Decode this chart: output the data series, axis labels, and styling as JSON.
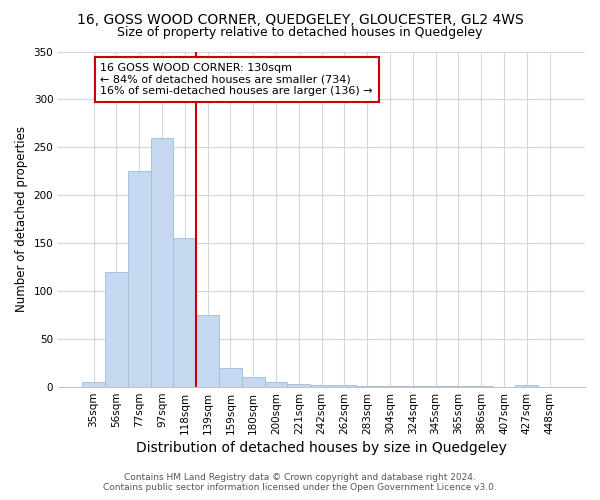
{
  "title1": "16, GOSS WOOD CORNER, QUEDGELEY, GLOUCESTER, GL2 4WS",
  "title2": "Size of property relative to detached houses in Quedgeley",
  "xlabel": "Distribution of detached houses by size in Quedgeley",
  "ylabel": "Number of detached properties",
  "categories": [
    "35sqm",
    "56sqm",
    "77sqm",
    "97sqm",
    "118sqm",
    "139sqm",
    "159sqm",
    "180sqm",
    "200sqm",
    "221sqm",
    "242sqm",
    "262sqm",
    "283sqm",
    "304sqm",
    "324sqm",
    "345sqm",
    "365sqm",
    "386sqm",
    "407sqm",
    "427sqm",
    "448sqm"
  ],
  "bar_heights": [
    5,
    120,
    225,
    260,
    155,
    75,
    20,
    10,
    5,
    3,
    2,
    2,
    1,
    1,
    1,
    1,
    1,
    1,
    0,
    2,
    0
  ],
  "bar_color": "#c5d8f0",
  "bar_edge_color": "#a0bcd8",
  "bar_width": 1.0,
  "vline_x": 5,
  "vline_color": "#cc0000",
  "annotation_line1": "16 GOSS WOOD CORNER: 130sqm",
  "annotation_line2": "← 84% of detached houses are smaller (734)",
  "annotation_line3": "16% of semi-detached houses are larger (136) →",
  "annotation_box_color": "#ffffff",
  "annotation_box_edge": "#cc0000",
  "ylim": [
    0,
    350
  ],
  "yticks": [
    0,
    50,
    100,
    150,
    200,
    250,
    300,
    350
  ],
  "bg_color": "#ffffff",
  "plot_bg_color": "#ffffff",
  "grid_color": "#d0d8e8",
  "footer1": "Contains HM Land Registry data © Crown copyright and database right 2024.",
  "footer2": "Contains public sector information licensed under the Open Government Licence v3.0.",
  "title1_fontsize": 10,
  "title2_fontsize": 9,
  "xlabel_fontsize": 10,
  "ylabel_fontsize": 8.5,
  "tick_fontsize": 7.5,
  "annotation_fontsize": 8,
  "footer_fontsize": 6.5
}
